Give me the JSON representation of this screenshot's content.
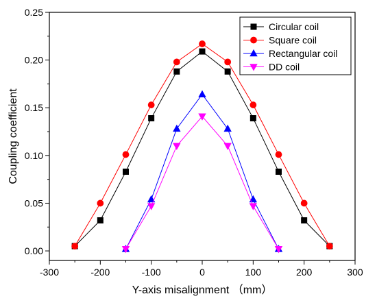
{
  "chart_data": {
    "type": "line",
    "xlabel": "Y-axis misalignment （mm）",
    "ylabel": "Coupling coefficient",
    "xlim": [
      -300,
      300
    ],
    "ylim": [
      -0.01,
      0.25
    ],
    "xticks": [
      -300,
      -200,
      -100,
      0,
      100,
      200,
      300
    ],
    "yticks": [
      0.0,
      0.05,
      0.1,
      0.15,
      0.2,
      0.25
    ],
    "grid": false,
    "legend_position": "top-right",
    "series": [
      {
        "name": "Circular coil",
        "color": "#000000",
        "marker": "square",
        "x": [
          -250,
          -200,
          -150,
          -100,
          -50,
          0,
          50,
          100,
          150,
          200,
          250
        ],
        "values": [
          0.005,
          0.032,
          0.083,
          0.139,
          0.188,
          0.209,
          0.188,
          0.139,
          0.083,
          0.032,
          0.005
        ]
      },
      {
        "name": "Square coil",
        "color": "#ff0000",
        "marker": "circle",
        "x": [
          -250,
          -200,
          -150,
          -100,
          -50,
          0,
          50,
          100,
          150,
          200,
          250
        ],
        "values": [
          0.005,
          0.05,
          0.101,
          0.153,
          0.198,
          0.217,
          0.198,
          0.153,
          0.101,
          0.05,
          0.005
        ]
      },
      {
        "name": "Rectangular coil",
        "color": "#0000ff",
        "marker": "triangle-up",
        "x": [
          -150,
          -100,
          -50,
          0,
          50,
          100,
          150
        ],
        "values": [
          0.002,
          0.054,
          0.128,
          0.164,
          0.128,
          0.054,
          0.002
        ]
      },
      {
        "name": "DD coil",
        "color": "#ff00ff",
        "marker": "triangle-down",
        "x": [
          -150,
          -100,
          -50,
          0,
          50,
          100,
          150
        ],
        "values": [
          0.002,
          0.047,
          0.11,
          0.141,
          0.11,
          0.047,
          0.002
        ]
      }
    ]
  }
}
